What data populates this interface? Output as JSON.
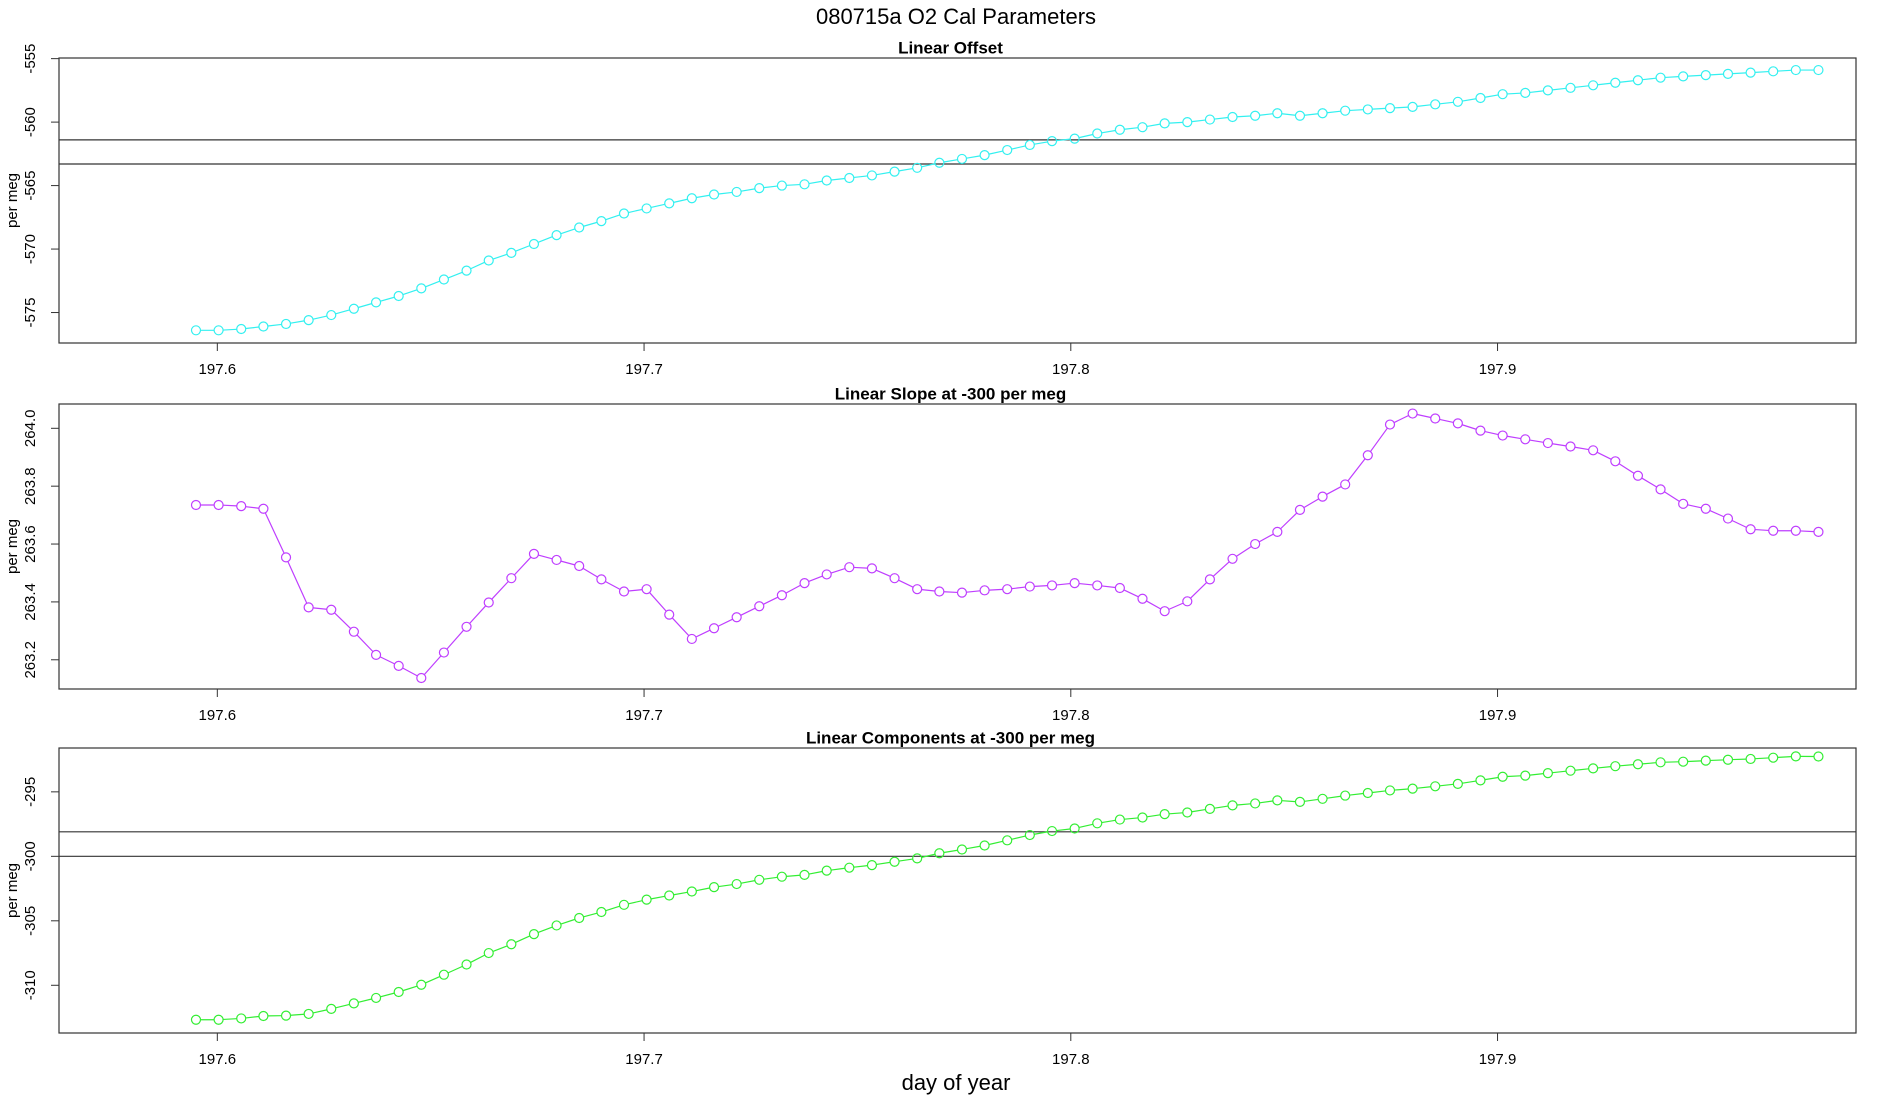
{
  "page": {
    "title": "080715a   O2 Cal Parameters",
    "xlabel": "day of year"
  },
  "chart_data": [
    {
      "type": "line",
      "title": "Linear Offset",
      "ylabel": "per meg",
      "color": "#33f0f0",
      "xlim": [
        197.5629,
        197.984
      ],
      "xticks": [
        197.6,
        197.7,
        197.8,
        197.9
      ],
      "ylim": [
        -577.4,
        -554.95
      ],
      "yticks": [
        -575,
        -570,
        -565,
        -560,
        -555
      ],
      "hlines": [
        -561.4,
        -563.3
      ],
      "x": [
        197.595,
        197.6003,
        197.6056,
        197.6108,
        197.6161,
        197.6214,
        197.6267,
        197.632,
        197.6372,
        197.6425,
        197.6478,
        197.6531,
        197.6584,
        197.6636,
        197.6689,
        197.6742,
        197.6795,
        197.6848,
        197.69,
        197.6953,
        197.7006,
        197.7059,
        197.7112,
        197.7164,
        197.7217,
        197.727,
        197.7323,
        197.7376,
        197.7428,
        197.7481,
        197.7534,
        197.7587,
        197.764,
        197.7692,
        197.7745,
        197.7798,
        197.7851,
        197.7904,
        197.7956,
        197.8009,
        197.8062,
        197.8115,
        197.8168,
        197.822,
        197.8273,
        197.8326,
        197.8379,
        197.8432,
        197.8484,
        197.8537,
        197.859,
        197.8643,
        197.8696,
        197.8748,
        197.8801,
        197.8854,
        197.8907,
        197.896,
        197.9012,
        197.9065,
        197.9118,
        197.9171,
        197.9224,
        197.9276,
        197.9329,
        197.9382,
        197.9435,
        197.9488,
        197.954,
        197.9593,
        197.9646,
        197.9699,
        197.9752
      ],
      "values": [
        -576.4,
        -576.4,
        -576.3,
        -576.1,
        -575.9,
        -575.6,
        -575.2,
        -574.7,
        -574.2,
        -573.7,
        -573.1,
        -572.4,
        -571.7,
        -570.9,
        -570.3,
        -569.6,
        -568.9,
        -568.3,
        -567.8,
        -567.2,
        -566.8,
        -566.4,
        -566.0,
        -565.7,
        -565.5,
        -565.2,
        -565.0,
        -564.9,
        -564.6,
        -564.4,
        -564.2,
        -563.9,
        -563.6,
        -563.2,
        -562.9,
        -562.6,
        -562.2,
        -561.8,
        -561.5,
        -561.3,
        -560.9,
        -560.6,
        -560.4,
        -560.1,
        -560.0,
        -559.8,
        -559.6,
        -559.5,
        -559.3,
        -559.5,
        -559.3,
        -559.1,
        -559.0,
        -558.9,
        -558.8,
        -558.6,
        -558.4,
        -558.1,
        -557.8,
        -557.7,
        -557.5,
        -557.3,
        -557.1,
        -556.9,
        -556.7,
        -556.5,
        -556.4,
        -556.3,
        -556.2,
        -556.1,
        -556.0,
        -555.9,
        -555.9
      ]
    },
    {
      "type": "line",
      "title": "Linear Slope at -300 per meg",
      "ylabel": "per meg",
      "color": "#bf3eff",
      "xlim": [
        197.5629,
        197.984
      ],
      "xticks": [
        197.6,
        197.7,
        197.8,
        197.9
      ],
      "ylim": [
        263.099,
        264.084
      ],
      "yticks": [
        263.2,
        263.4,
        263.6,
        263.8,
        {
          "value": 264,
          "label": "264.0"
        }
      ],
      "x": [
        197.595,
        197.6003,
        197.6056,
        197.6108,
        197.6161,
        197.6214,
        197.6267,
        197.632,
        197.6372,
        197.6425,
        197.6478,
        197.6531,
        197.6584,
        197.6636,
        197.6689,
        197.6742,
        197.6795,
        197.6848,
        197.69,
        197.6953,
        197.7006,
        197.7059,
        197.7112,
        197.7164,
        197.7217,
        197.727,
        197.7323,
        197.7376,
        197.7428,
        197.7481,
        197.7534,
        197.7587,
        197.764,
        197.7692,
        197.7745,
        197.7798,
        197.7851,
        197.7904,
        197.7956,
        197.8009,
        197.8062,
        197.8115,
        197.8168,
        197.822,
        197.8273,
        197.8326,
        197.8379,
        197.8432,
        197.8484,
        197.8537,
        197.859,
        197.8643,
        197.8696,
        197.8748,
        197.8801,
        197.8854,
        197.8907,
        197.896,
        197.9012,
        197.9065,
        197.9118,
        197.9171,
        197.9224,
        197.9276,
        197.9329,
        197.9382,
        197.9435,
        197.9488,
        197.954,
        197.9593,
        197.9646,
        197.9699,
        197.9752
      ],
      "values": [
        263.735,
        263.735,
        263.731,
        263.722,
        263.554,
        263.381,
        263.373,
        263.297,
        263.217,
        263.179,
        263.137,
        263.225,
        263.314,
        263.398,
        263.482,
        263.566,
        263.545,
        263.524,
        263.478,
        263.436,
        263.444,
        263.356,
        263.272,
        263.309,
        263.347,
        263.385,
        263.423,
        263.465,
        263.495,
        263.52,
        263.516,
        263.482,
        263.444,
        263.436,
        263.432,
        263.44,
        263.444,
        263.453,
        263.457,
        263.465,
        263.457,
        263.448,
        263.411,
        263.368,
        263.402,
        263.478,
        263.549,
        263.6,
        263.642,
        263.718,
        263.764,
        263.806,
        263.907,
        264.013,
        264.051,
        264.034,
        264.017,
        263.992,
        263.975,
        263.962,
        263.949,
        263.937,
        263.924,
        263.886,
        263.836,
        263.789,
        263.739,
        263.722,
        263.688,
        263.651,
        263.646,
        263.646,
        263.642
      ]
    },
    {
      "type": "line",
      "title": "Linear Components at -300 per meg",
      "ylabel": "per meg",
      "color": "#33ee33",
      "xlim": [
        197.5629,
        197.984
      ],
      "xticks": [
        197.6,
        197.7,
        197.8,
        197.9
      ],
      "ylim": [
        -313.7,
        -291.6
      ],
      "yticks": [
        -310,
        -305,
        -300,
        -295
      ],
      "hlines": [
        -298.1,
        -300.0
      ],
      "x": [
        197.595,
        197.6003,
        197.6056,
        197.6108,
        197.6161,
        197.6214,
        197.6267,
        197.632,
        197.6372,
        197.6425,
        197.6478,
        197.6531,
        197.6584,
        197.6636,
        197.6689,
        197.6742,
        197.6795,
        197.6848,
        197.69,
        197.6953,
        197.7006,
        197.7059,
        197.7112,
        197.7164,
        197.7217,
        197.727,
        197.7323,
        197.7376,
        197.7428,
        197.7481,
        197.7534,
        197.7587,
        197.764,
        197.7692,
        197.7745,
        197.7798,
        197.7851,
        197.7904,
        197.7956,
        197.8009,
        197.8062,
        197.8115,
        197.8168,
        197.822,
        197.8273,
        197.8326,
        197.8379,
        197.8432,
        197.8484,
        197.8537,
        197.859,
        197.8643,
        197.8696,
        197.8748,
        197.8801,
        197.8854,
        197.8907,
        197.896,
        197.9012,
        197.9065,
        197.9118,
        197.9171,
        197.9224,
        197.9276,
        197.9329,
        197.9382,
        197.9435,
        197.9488,
        197.954,
        197.9593,
        197.9646,
        197.9699,
        197.9752
      ],
      "values": [
        -312.67,
        -312.67,
        -312.57,
        -312.38,
        -312.35,
        -312.22,
        -311.83,
        -311.4,
        -310.98,
        -310.52,
        -309.96,
        -309.18,
        -308.39,
        -307.5,
        -306.82,
        -306.03,
        -305.36,
        -304.78,
        -304.32,
        -303.76,
        -303.36,
        -303.04,
        -302.73,
        -302.39,
        -302.15,
        -301.82,
        -301.58,
        -301.44,
        -301.11,
        -300.88,
        -300.68,
        -300.42,
        -300.16,
        -299.76,
        -299.47,
        -299.16,
        -298.76,
        -298.35,
        -298.04,
        -297.84,
        -297.44,
        -297.15,
        -296.99,
        -296.73,
        -296.6,
        -296.32,
        -296.05,
        -295.9,
        -295.66,
        -295.78,
        -295.54,
        -295.29,
        -295.09,
        -294.89,
        -294.75,
        -294.57,
        -294.38,
        -294.11,
        -293.83,
        -293.74,
        -293.55,
        -293.36,
        -293.18,
        -293.01,
        -292.86,
        -292.71,
        -292.66,
        -292.58,
        -292.51,
        -292.45,
        -292.35,
        -292.25,
        -292.26
      ]
    }
  ]
}
